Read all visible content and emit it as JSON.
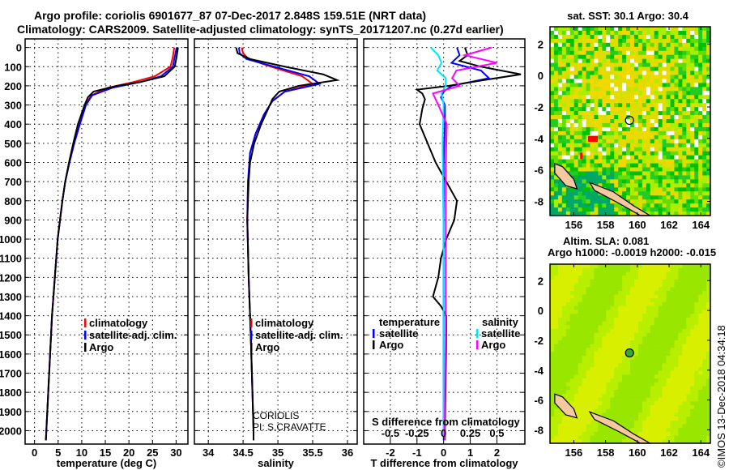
{
  "title_line1": "Argo profile: coriolis 6901677_87 07-Dec-2017 2.848S 159.51E (NRT data)",
  "title_line2": "Climatology: CARS2009. Satellite-adjusted climatology: synTS_20171207.nc (0.27d earlier)",
  "watermark": "©IMOS 13-Dec-2018 04:34:18",
  "colors": {
    "climatology": "#ff0000",
    "satellite": "#0000ff",
    "argo": "#000000",
    "sal_satellite": "#00e5ff",
    "sal_argo": "#ff00ff",
    "land": "#f5c8a0"
  },
  "chart_data": [
    {
      "type": "line",
      "title": "",
      "xlabel": "temperature (deg C)",
      "ylabel": "depth",
      "xlim": [
        -2,
        32.5
      ],
      "ylim": [
        2070,
        -45
      ],
      "xticks": [
        0,
        5,
        10,
        15,
        20,
        25,
        30
      ],
      "yticks": [
        0,
        100,
        200,
        300,
        400,
        500,
        600,
        700,
        800,
        900,
        1000,
        1100,
        1200,
        1300,
        1400,
        1500,
        1600,
        1700,
        1800,
        1900,
        2000
      ],
      "legend": [
        "climatology",
        "satellite-adj. clim.",
        "Argo"
      ],
      "series": [
        {
          "name": "climatology",
          "color": "#ff0000",
          "depth": [
            0,
            50,
            100,
            150,
            180,
            210,
            250,
            300,
            400,
            500,
            600,
            700,
            800,
            900,
            1000,
            1200,
            1400,
            1600,
            1800,
            2000,
            2050
          ],
          "values": [
            29.6,
            29.3,
            28.8,
            25.5,
            21,
            15.5,
            12,
            10.8,
            9.6,
            8.4,
            7.4,
            6.5,
            5.9,
            5.4,
            4.9,
            4.3,
            3.7,
            3.3,
            2.9,
            2.5,
            2.4
          ]
        },
        {
          "name": "satellite-adj. clim.",
          "color": "#0000ff",
          "depth": [
            0,
            50,
            100,
            150,
            180,
            210,
            250,
            300,
            400,
            500,
            600,
            700,
            800,
            900,
            1000,
            1200,
            1400,
            1600,
            1800,
            2000,
            2050
          ],
          "values": [
            30.1,
            29.7,
            29.3,
            26.8,
            22.5,
            16.5,
            12.2,
            10.9,
            9.6,
            8.4,
            7.4,
            6.5,
            5.9,
            5.4,
            4.9,
            4.3,
            3.7,
            3.3,
            2.9,
            2.5,
            2.4
          ]
        },
        {
          "name": "Argo",
          "color": "#000000",
          "depth": [
            0,
            50,
            100,
            150,
            180,
            200,
            230,
            260,
            300,
            400,
            500,
            600,
            700,
            800,
            900,
            1000,
            1200,
            1400,
            1600,
            1800,
            2000,
            2050
          ],
          "values": [
            30.4,
            30.1,
            29.7,
            27.5,
            22.5,
            17.5,
            12.5,
            11.3,
            10.6,
            9.2,
            8.2,
            7.3,
            6.5,
            5.9,
            5.4,
            4.9,
            4.3,
            3.7,
            3.3,
            2.9,
            2.5,
            2.4
          ]
        }
      ]
    },
    {
      "type": "line",
      "xlabel": "salinity",
      "ylabel": "",
      "xlim": [
        33.8,
        36.14
      ],
      "ylim": [
        2070,
        -45
      ],
      "xticks": [
        34,
        34.5,
        35,
        35.5,
        36
      ],
      "legend": [
        "climatology",
        "satellite-adj. clim.",
        "Argo"
      ],
      "annotation": [
        "CORIOLIS",
        "PI: S.CRAVATTE"
      ],
      "series": [
        {
          "name": "climatology",
          "color": "#ff0000",
          "depth": [
            0,
            30,
            60,
            100,
            150,
            190,
            230,
            280,
            350,
            450,
            550,
            700,
            900,
            1200,
            1500,
            2000,
            2050
          ],
          "values": [
            34.48,
            34.5,
            34.58,
            34.9,
            35.35,
            35.5,
            35.1,
            34.92,
            34.8,
            34.68,
            34.6,
            34.57,
            34.56,
            34.58,
            34.61,
            34.65,
            34.65
          ]
        },
        {
          "name": "satellite-adj. clim.",
          "color": "#0000ff",
          "depth": [
            0,
            30,
            60,
            100,
            150,
            190,
            230,
            280,
            350,
            450,
            550,
            700,
            900,
            1200,
            1500,
            2000,
            2050
          ],
          "values": [
            34.44,
            34.45,
            34.55,
            34.95,
            35.45,
            35.6,
            35.1,
            34.92,
            34.8,
            34.68,
            34.6,
            34.57,
            34.56,
            34.58,
            34.61,
            34.65,
            34.65
          ]
        },
        {
          "name": "Argo",
          "color": "#000000",
          "depth": [
            0,
            30,
            60,
            100,
            140,
            170,
            200,
            230,
            270,
            320,
            400,
            500,
            600,
            700,
            900,
            1200,
            1500,
            2000,
            2050
          ],
          "values": [
            34.4,
            34.42,
            34.6,
            35.1,
            35.65,
            35.85,
            35.3,
            35.02,
            34.92,
            34.86,
            34.76,
            34.66,
            34.6,
            34.58,
            34.56,
            34.58,
            34.61,
            34.65,
            34.65
          ]
        }
      ]
    },
    {
      "type": "line",
      "xlabel": "T difference from climatology",
      "xlabel2": "S difference from climatology",
      "xlim": [
        -3,
        3.05
      ],
      "ylim": [
        2070,
        -45
      ],
      "xticks": [
        -2,
        -1,
        0,
        1,
        2
      ],
      "xticks_s": [
        "-0.5",
        "-0.25",
        "0",
        "0.25",
        "0.5"
      ],
      "legend_t_title": "temperature",
      "legend_s_title": "salinity",
      "legend_t": [
        "satellite",
        "Argo"
      ],
      "legend_s": [
        "satellite",
        "Argo"
      ],
      "series": [
        {
          "name": "T satellite",
          "color": "#0000ff",
          "depth": [
            0,
            40,
            80,
            120,
            160,
            200,
            230,
            260,
            300,
            400,
            600,
            1000,
            2000,
            2050
          ],
          "values": [
            0.5,
            0.6,
            0.3,
            1.4,
            1.7,
            0.3,
            0,
            -0.1,
            0.05,
            0.05,
            0,
            0,
            0,
            0
          ]
        },
        {
          "name": "T Argo",
          "color": "#000000",
          "depth": [
            0,
            40,
            70,
            100,
            140,
            170,
            200,
            220,
            240,
            270,
            320,
            400,
            500,
            600,
            700,
            800,
            900,
            1000,
            1100,
            1200,
            1300,
            1350,
            1400,
            1500,
            2000,
            2050
          ],
          "values": [
            0.8,
            0.9,
            0.6,
            1.4,
            2.9,
            1.5,
            0.2,
            -1.0,
            -0.8,
            -0.7,
            -0.8,
            -0.9,
            -0.6,
            -0.3,
            0.1,
            0.5,
            0.4,
            0.1,
            -0.1,
            -0.2,
            -0.4,
            -0.1,
            0.1,
            0.1,
            0.05,
            0.05
          ]
        },
        {
          "name": "S satellite",
          "color": "#00e5ff",
          "depth": [
            0,
            40,
            80,
            120,
            160,
            200,
            240,
            300,
            500,
            1000,
            2000,
            2050
          ],
          "values": [
            -0.12,
            -0.05,
            -0.02,
            -0.06,
            0.02,
            0.02,
            -0.02,
            0,
            -0.01,
            0,
            0,
            0
          ]
        },
        {
          "name": "S Argo",
          "color": "#ff00ff",
          "depth": [
            0,
            40,
            80,
            120,
            160,
            200,
            240,
            300,
            400,
            600,
            1000,
            1500,
            2000,
            2050
          ],
          "values": [
            0.45,
            0.2,
            0.5,
            0.12,
            0.08,
            0.15,
            -0.1,
            -0.05,
            0.03,
            0.02,
            0.02,
            0.02,
            0.01,
            0.01
          ]
        }
      ]
    },
    {
      "type": "heatmap",
      "title": "sat. SST: 30.1 Argo: 30.4",
      "xlim": [
        154.5,
        164.6
      ],
      "ylim": [
        -8.9,
        3.1
      ],
      "xticks": [
        156,
        158,
        160,
        162,
        164
      ],
      "yticks": [
        2,
        0,
        -2,
        -4,
        -6,
        -8
      ],
      "marker": [
        159.51,
        -2.848
      ]
    },
    {
      "type": "heatmap",
      "title_line1": "Altim. SLA: 0.081",
      "title_line2": "Argo h1000: -0.0019 h2000: -0.015",
      "xlim": [
        154.5,
        164.6
      ],
      "ylim": [
        -8.9,
        3.1
      ],
      "xticks": [
        156,
        158,
        160,
        162,
        164
      ],
      "yticks": [
        2,
        0,
        -2,
        -4,
        -6,
        -8
      ],
      "marker": [
        159.51,
        -2.848
      ]
    }
  ]
}
